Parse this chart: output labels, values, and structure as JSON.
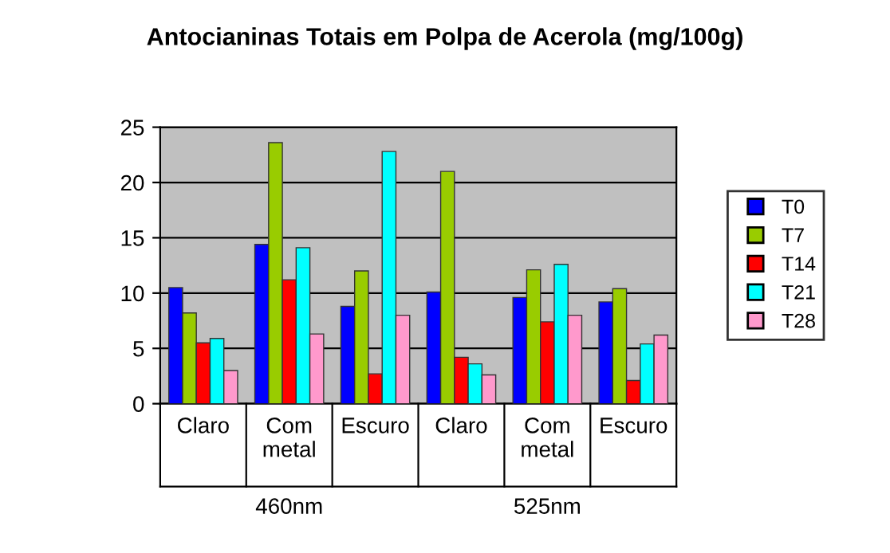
{
  "chart_data": {
    "type": "bar",
    "title": "Antocianinas Totais em Polpa de Acerola (mg/100g)",
    "categories": [
      "Claro",
      "Com\nmetal",
      "Escuro",
      "Claro",
      "Com\nmetal",
      "Escuro"
    ],
    "series": [
      {
        "name": "T0",
        "color": "#0000ff",
        "values": [
          10.5,
          14.4,
          8.8,
          10.1,
          9.6,
          9.2
        ]
      },
      {
        "name": "T7",
        "color": "#99cc00",
        "values": [
          8.2,
          23.6,
          12.0,
          21.0,
          12.1,
          10.4
        ]
      },
      {
        "name": "T14",
        "color": "#ff0000",
        "values": [
          5.5,
          11.2,
          2.7,
          4.2,
          7.4,
          2.1
        ]
      },
      {
        "name": "T21",
        "color": "#00ffff",
        "values": [
          5.9,
          14.1,
          22.8,
          3.6,
          12.6,
          5.4
        ]
      },
      {
        "name": "T28",
        "color": "#ff99cc",
        "values": [
          3.0,
          6.3,
          8.0,
          2.6,
          8.0,
          6.2
        ]
      }
    ],
    "annotations": [
      "460nm",
      "525nm"
    ],
    "ylim": [
      0,
      25
    ],
    "yticks": [
      0,
      5,
      10,
      15,
      20,
      25
    ],
    "grid": "y",
    "legend": "right"
  }
}
